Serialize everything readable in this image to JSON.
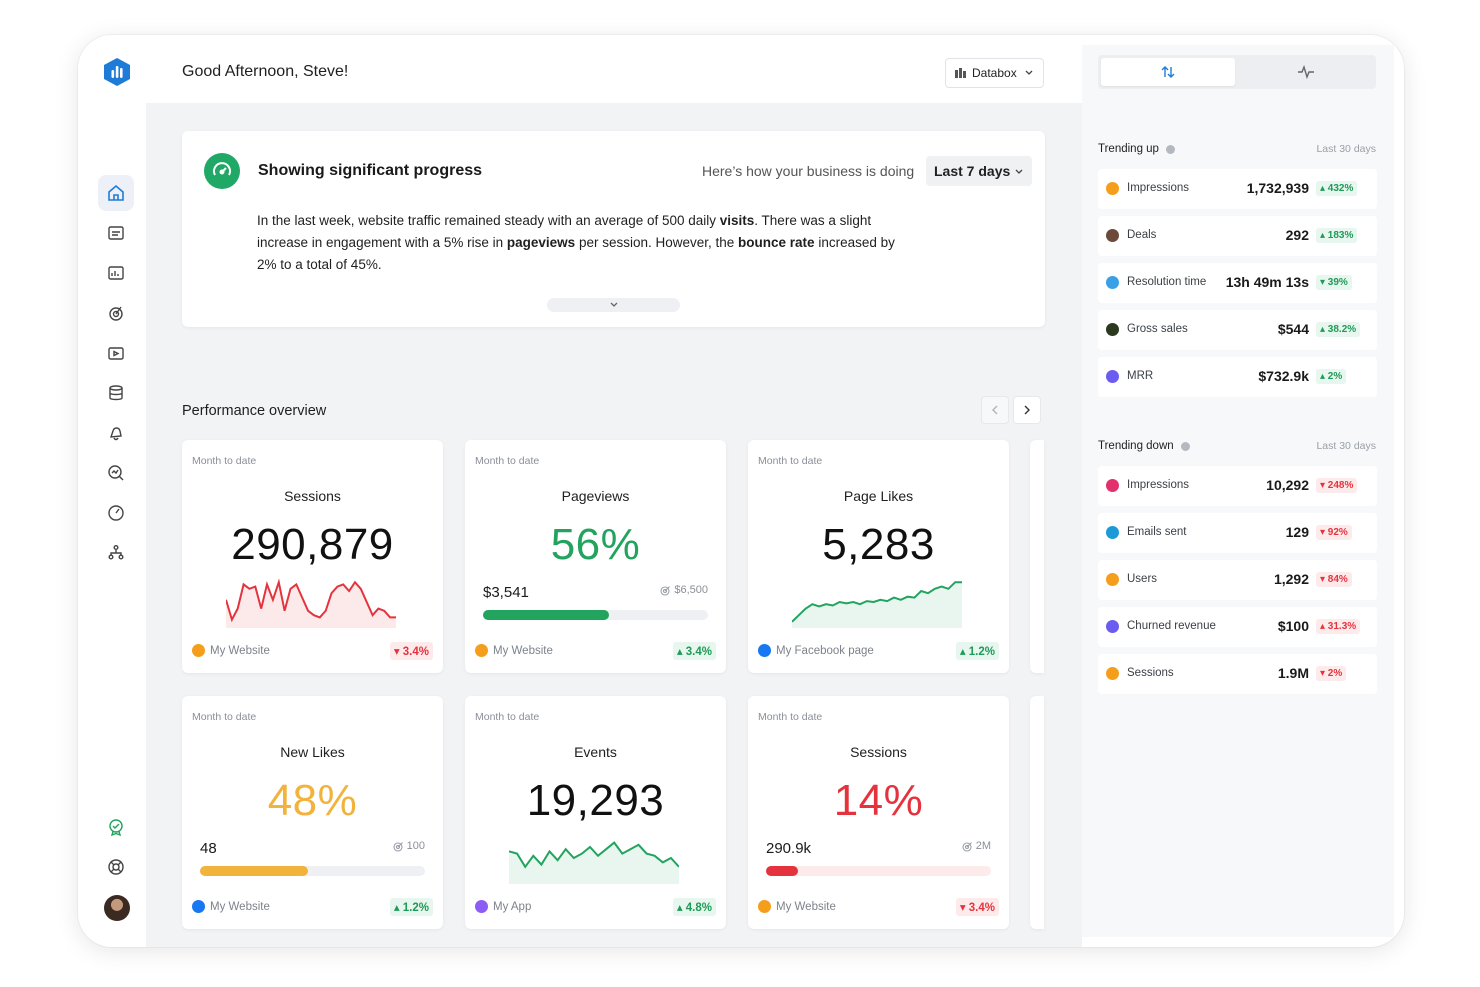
{
  "header": {
    "greeting": "Good Afternoon, Steve!",
    "account_label": "Databox"
  },
  "progress": {
    "title": "Showing significant progress",
    "subtitle": "Here’s how your business is doing",
    "period": "Last 7 days",
    "text_1": "In the last week, website traffic remained steady with an average of 500 daily ",
    "bold_1": "visits",
    "text_2": ". There was a slight increase in engagement with a 5% rise in ",
    "bold_2": "pageviews",
    "text_3": " per session. However, the ",
    "bold_3": "bounce rate",
    "text_4": " increased by 2% to a total of 45%."
  },
  "performance": {
    "title": "Performance overview",
    "cards": [
      {
        "period": "Month to date",
        "name": "Sessions",
        "value": "290,879",
        "source": "My Website",
        "change": "▾ 3.4%",
        "direction": "down",
        "spark": [
          0.55,
          0.1,
          0.35,
          0.9,
          0.8,
          0.85,
          0.35,
          0.9,
          0.55,
          0.95,
          0.3,
          0.8,
          0.9,
          0.6,
          0.3,
          0.2,
          0.15,
          0.3,
          0.7,
          0.85,
          0.9,
          0.75,
          0.95,
          0.8,
          0.5,
          0.2,
          0.35,
          0.3,
          0.15,
          0.15
        ],
        "spark_color": "#e5333d"
      },
      {
        "period": "Month to date",
        "name": "Pageviews",
        "value": "56%",
        "value_color": "green",
        "current": "$3,541",
        "goal": "$6,500",
        "progress": 0.56,
        "bar_color": "#22a35e",
        "source": "My Website",
        "change": "▴ 3.4%",
        "direction": "up"
      },
      {
        "period": "Month to date",
        "name": "Page Likes",
        "value": "5,283",
        "source": "My Facebook page",
        "change": "▴ 1.2%",
        "direction": "up",
        "spark": [
          0.05,
          0.2,
          0.35,
          0.45,
          0.4,
          0.45,
          0.42,
          0.5,
          0.47,
          0.5,
          0.45,
          0.52,
          0.5,
          0.55,
          0.52,
          0.6,
          0.55,
          0.62,
          0.6,
          0.75,
          0.7,
          0.8,
          0.85,
          0.8,
          0.95,
          0.95
        ],
        "spark_color": "#22a35e"
      },
      {
        "period": "Month to date",
        "name": "New Likes",
        "value": "48%",
        "value_color": "orange",
        "current": "48",
        "goal": "100",
        "progress": 0.48,
        "bar_color": "#f2b33d",
        "source": "My Website",
        "change": "▴ 1.2%",
        "direction": "up"
      },
      {
        "period": "Month to date",
        "name": "Events",
        "value": "19,293",
        "source": "My App",
        "change": "▴ 4.8%",
        "direction": "up",
        "spark": [
          0.65,
          0.6,
          0.3,
          0.55,
          0.35,
          0.65,
          0.45,
          0.7,
          0.5,
          0.6,
          0.75,
          0.55,
          0.7,
          0.85,
          0.6,
          0.7,
          0.8,
          0.6,
          0.55,
          0.4,
          0.5,
          0.3
        ],
        "spark_color": "#22a35e"
      },
      {
        "period": "Month to date",
        "name": "Sessions",
        "value": "14%",
        "value_color": "red",
        "current": "290.9k",
        "goal": "2M",
        "progress": 0.14,
        "bar_color": "#e5333d",
        "source": "My Website",
        "change": "▾ 3.4%",
        "direction": "down"
      }
    ]
  },
  "trending_up": {
    "title": "Trending up",
    "range": "Last 30 days",
    "items": [
      {
        "name": "Impressions",
        "value": "1,732,939",
        "change": "▴ 432%",
        "direction": "up",
        "icon_color": "#f59e1b"
      },
      {
        "name": "Deals",
        "value": "292",
        "change": "▴ 183%",
        "direction": "up",
        "icon_color": "#6b4a3a"
      },
      {
        "name": "Resolution time",
        "value": "13h 49m 13s",
        "change": "▾ 39%",
        "direction": "up",
        "icon_color": "#3aa0e6"
      },
      {
        "name": "Gross sales",
        "value": "$544",
        "change": "▴ 38.2%",
        "direction": "up",
        "icon_color": "#2b3a1f"
      },
      {
        "name": "MRR",
        "value": "$732.9k",
        "change": "▴ 2%",
        "direction": "up",
        "icon_color": "#6a5cf0"
      }
    ]
  },
  "trending_down": {
    "title": "Trending down",
    "range": "Last 30 days",
    "items": [
      {
        "name": "Impressions",
        "value": "10,292",
        "change": "▾ 248%",
        "direction": "down",
        "icon_color": "#e1306c"
      },
      {
        "name": "Emails sent",
        "value": "129",
        "change": "▾ 92%",
        "direction": "down",
        "icon_color": "#1c9ad6"
      },
      {
        "name": "Users",
        "value": "1,292",
        "change": "▾ 84%",
        "direction": "down",
        "icon_color": "#f59e1b"
      },
      {
        "name": "Churned revenue",
        "value": "$100",
        "change": "▴ 31.3%",
        "direction": "down",
        "icon_color": "#6a5cf0"
      },
      {
        "name": "Sessions",
        "value": "1.9M",
        "change": "▾ 2%",
        "direction": "down",
        "icon_color": "#f59e1b"
      }
    ]
  },
  "colors": {
    "brand": "#1f7bd8",
    "positive": "#22a35e",
    "negative": "#e5333d",
    "warning": "#f2b33d"
  }
}
